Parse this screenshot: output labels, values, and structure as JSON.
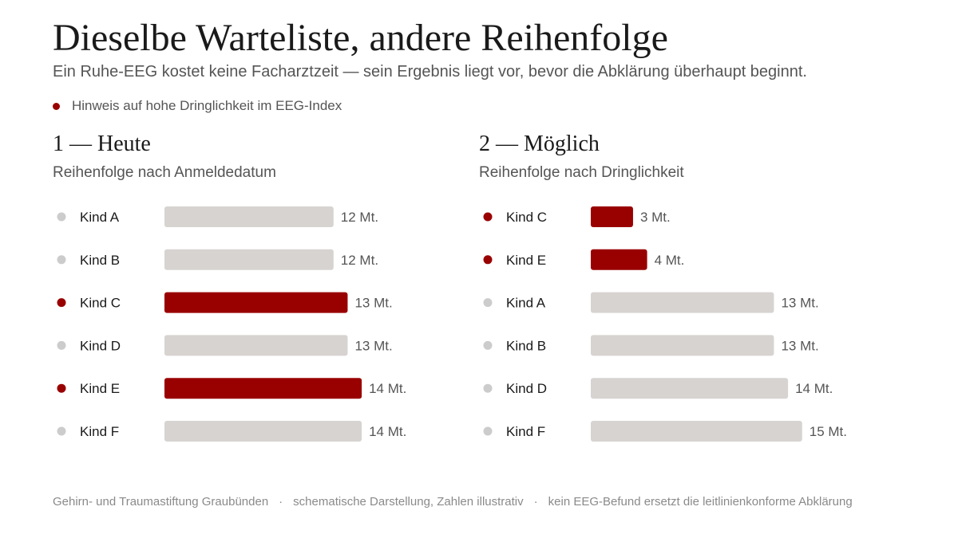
{
  "title": "Dieselbe Warteliste, andere Reihenfolge",
  "subtitle": "Ein Ruhe-EEG kostet keine Facharztzeit — sein Ergebnis liegt vor, bevor die Abklärung überhaupt beginnt.",
  "legend": {
    "label": "Hinweis auf hohe Dringlichkeit im EEG-Index",
    "color": "#990000"
  },
  "colors": {
    "urgent": "#990000",
    "normal_bar": "#d7d3d1",
    "normal_dot": "#cccccc"
  },
  "footer": {
    "items": [
      "Gehirn- und Traumastiftung Graubünden",
      "schematische Darstellung, Zahlen illustrativ",
      "kein EEG-Befund ersetzt die leitlinienkonforme Abklärung"
    ],
    "separator": "·"
  },
  "chart_data": [
    {
      "type": "bar",
      "orientation": "horizontal",
      "title": "1 — Heute",
      "subtitle": "Reihenfolge nach Anmeldedatum",
      "unit": "Mt.",
      "categories": [
        "Kind A",
        "Kind B",
        "Kind C",
        "Kind D",
        "Kind E",
        "Kind F"
      ],
      "values": [
        12,
        12,
        13,
        13,
        14,
        14
      ],
      "urgent": [
        false,
        false,
        true,
        false,
        true,
        false
      ]
    },
    {
      "type": "bar",
      "orientation": "horizontal",
      "title": "2 — Möglich",
      "subtitle": "Reihenfolge nach Dringlichkeit",
      "unit": "Mt.",
      "categories": [
        "Kind C",
        "Kind E",
        "Kind A",
        "Kind B",
        "Kind D",
        "Kind F"
      ],
      "values": [
        3,
        4,
        13,
        13,
        14,
        15
      ],
      "urgent": [
        true,
        true,
        false,
        false,
        false,
        false
      ]
    }
  ]
}
